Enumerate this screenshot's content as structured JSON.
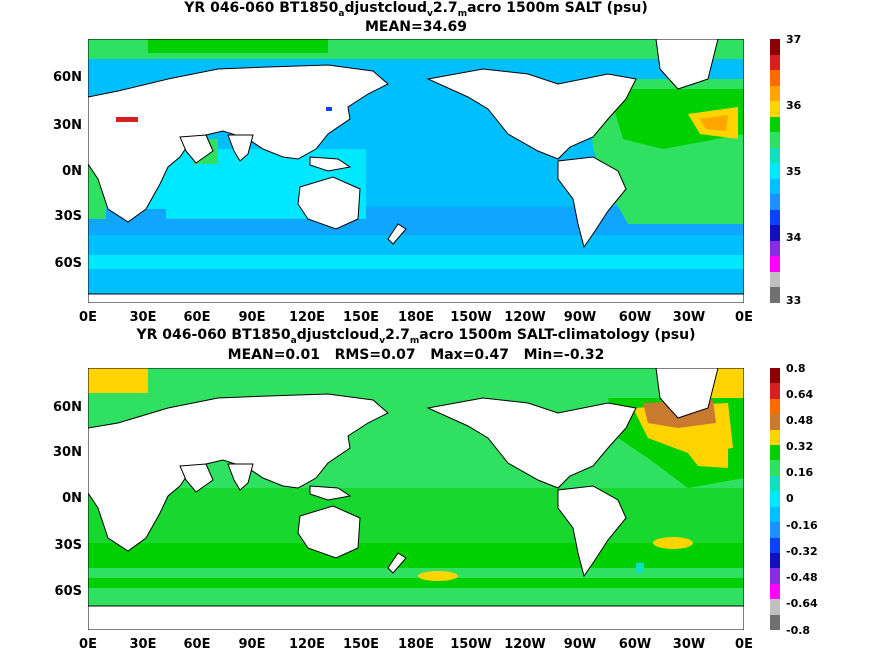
{
  "chart_data": [
    {
      "type": "heatmap",
      "title_prefix": "YR 046-060 BT1850",
      "title_sub1": "a",
      "title_mid1": "djustcloud",
      "title_sub2": "v",
      "title_mid2": "2.7",
      "title_sub3": "m",
      "title_suffix": "acro 1500m SALT (psu)",
      "subtitle": "MEAN=34.69",
      "x_ticks": [
        "0E",
        "30E",
        "60E",
        "90E",
        "120E",
        "150E",
        "180E",
        "150W",
        "120W",
        "90W",
        "60W",
        "30W",
        "0E"
      ],
      "y_ticks": [
        "60N",
        "30N",
        "0N",
        "30S",
        "60S"
      ],
      "xlim": [
        0,
        360
      ],
      "ylim": [
        -79,
        85
      ],
      "colorbar": {
        "labels": [
          "37",
          "36",
          "35",
          "34",
          "33"
        ],
        "colors": [
          "#8b0000",
          "#d81e1e",
          "#ff6b00",
          "#ffa500",
          "#ffd400",
          "#00d000",
          "#30e060",
          "#10e0c0",
          "#00e8ff",
          "#00bfff",
          "#1e90ff",
          "#1040ff",
          "#1010c0",
          "#8a2be2",
          "#ff00ff",
          "#c0c0c0",
          "#707070"
        ]
      },
      "fields": {
        "pacific": 34.6,
        "indian": 34.7,
        "southern": 34.7,
        "atlantic": 35.0,
        "subtropical_atlantic": 35.7,
        "mediterranean": 37.0
      }
    },
    {
      "type": "heatmap",
      "title_prefix": "YR 046-060 BT1850",
      "title_sub1": "a",
      "title_mid1": "djustcloud",
      "title_sub2": "v",
      "title_mid2": "2.7",
      "title_sub3": "m",
      "title_suffix": "acro 1500m SALT-climatology (psu)",
      "stats": "MEAN=0.01   RMS=0.07   Max=0.47   Min=-0.32",
      "x_ticks": [
        "0E",
        "30E",
        "60E",
        "90E",
        "120E",
        "150E",
        "180E",
        "150W",
        "120W",
        "90W",
        "60W",
        "30W",
        "0E"
      ],
      "y_ticks": [
        "60N",
        "30N",
        "0N",
        "30S",
        "60S"
      ],
      "xlim": [
        0,
        360
      ],
      "ylim": [
        -79,
        85
      ],
      "colorbar": {
        "labels": [
          "0.8",
          "0.64",
          "0.48",
          "0.32",
          "0.16",
          "0",
          "-0.16",
          "-0.32",
          "-0.48",
          "-0.64",
          "-0.8"
        ],
        "colors": [
          "#8b0000",
          "#d81e1e",
          "#ff6b00",
          "#c87a30",
          "#ffd400",
          "#00d000",
          "#30e060",
          "#10e0c0",
          "#00e8ff",
          "#00bfff",
          "#1e90ff",
          "#1040ff",
          "#1010c0",
          "#8a2be2",
          "#ff00ff",
          "#c0c0c0",
          "#707070"
        ]
      },
      "fields": {
        "pacific": 0.03,
        "indian": 0.04,
        "southern": 0.08,
        "north_atlantic": 0.4,
        "arctic": 0.2,
        "south_pacific_max": 0.25
      }
    }
  ]
}
